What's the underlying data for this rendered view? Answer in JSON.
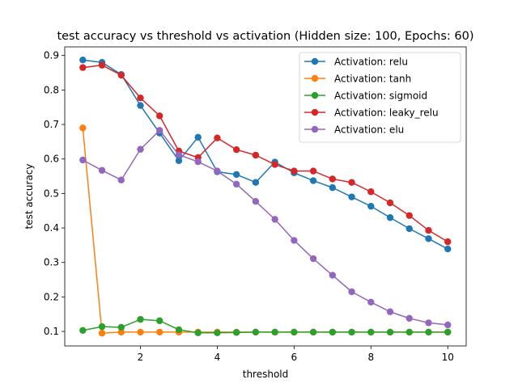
{
  "chart_data": {
    "type": "line",
    "title": "test accuracy vs threshold vs activation (Hidden size: 100, Epochs: 60)",
    "xlabel": "threshold",
    "ylabel": "test accuracy",
    "xlim": [
      0.03,
      10.48
    ],
    "ylim": [
      0.058,
      0.925
    ],
    "xticks": [
      2,
      4,
      6,
      8,
      10
    ],
    "xtick_labels": [
      "2",
      "4",
      "6",
      "8",
      "10"
    ],
    "yticks": [
      0.1,
      0.2,
      0.3,
      0.4,
      0.5,
      0.6,
      0.7,
      0.8,
      0.9
    ],
    "ytick_labels": [
      "0.1",
      "0.2",
      "0.3",
      "0.4",
      "0.5",
      "0.6",
      "0.7",
      "0.8",
      "0.9"
    ],
    "grid": false,
    "legend_position": "top-right",
    "x": [
      0.5,
      1.0,
      1.5,
      2.0,
      2.5,
      3.0,
      3.5,
      4.0,
      4.5,
      5.0,
      5.5,
      6.0,
      6.5,
      7.0,
      7.5,
      8.0,
      8.5,
      9.0,
      9.5,
      10.0
    ],
    "series": [
      {
        "name": "Activation: relu",
        "color": "#1f77b4",
        "values": [
          0.887,
          0.88,
          0.845,
          0.755,
          0.675,
          0.595,
          0.663,
          0.563,
          0.555,
          0.532,
          0.591,
          0.56,
          0.537,
          0.517,
          0.49,
          0.463,
          0.43,
          0.398,
          0.369,
          0.339
        ]
      },
      {
        "name": "Activation: tanh",
        "color": "#ff7f0e",
        "values": [
          0.69,
          0.095,
          0.098,
          0.098,
          0.098,
          0.098,
          0.098,
          0.098,
          0.098,
          0.098,
          0.098,
          0.098,
          0.098,
          0.098,
          0.098,
          0.098,
          0.098,
          0.098,
          0.098,
          0.098
        ]
      },
      {
        "name": "Activation: sigmoid",
        "color": "#2ca02c",
        "values": [
          0.103,
          0.114,
          0.112,
          0.135,
          0.131,
          0.105,
          0.096,
          0.096,
          0.097,
          0.098,
          0.098,
          0.098,
          0.098,
          0.098,
          0.098,
          0.098,
          0.098,
          0.098,
          0.098,
          0.098
        ]
      },
      {
        "name": "Activation: leaky_relu",
        "color": "#d62728",
        "values": [
          0.865,
          0.872,
          0.843,
          0.777,
          0.725,
          0.623,
          0.604,
          0.661,
          0.627,
          0.611,
          0.584,
          0.565,
          0.565,
          0.542,
          0.532,
          0.505,
          0.473,
          0.436,
          0.393,
          0.36
        ]
      },
      {
        "name": "Activation: elu",
        "color": "#9467bd",
        "values": [
          0.597,
          0.567,
          0.539,
          0.628,
          0.683,
          0.612,
          0.592,
          0.565,
          0.527,
          0.477,
          0.425,
          0.364,
          0.311,
          0.263,
          0.215,
          0.185,
          0.157,
          0.138,
          0.125,
          0.119
        ]
      }
    ]
  }
}
